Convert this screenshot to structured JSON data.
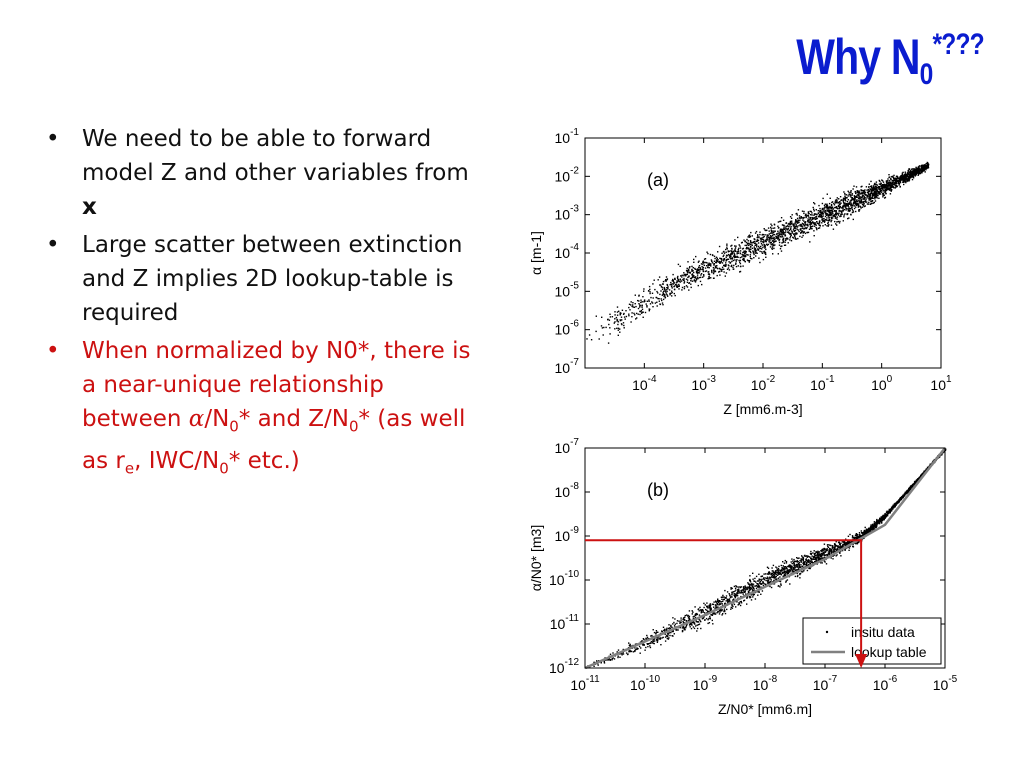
{
  "title": {
    "main": "Why N",
    "sub": "0",
    "rest": "*???"
  },
  "bullets": [
    {
      "text": "We need to be able to forward model Z and other variables from ",
      "bold": "x"
    },
    {
      "text": "Large scatter between extinction and Z implies 2D lookup-table is required"
    },
    {
      "p1": "When normalized by N0*, there is a near-unique relationship between ",
      "alpha": "α",
      "p2": "/N",
      "s1": "0",
      "p3": "* and Z/N",
      "s2": "0",
      "p4": "* (as well as r",
      "s3": "e",
      "p5": ", IWC/N",
      "s4": "0",
      "p6": "* etc.)"
    }
  ],
  "colors": {
    "title": "#0a1ccf",
    "highlight": "#cc1111",
    "scatter": "#000000",
    "lookup": "#808080"
  },
  "chart_data": [
    {
      "type": "scatter",
      "panel_label": "(a)",
      "xlabel": "Z [mm6.m-3]",
      "ylabel": "α [m-1]",
      "x_scale": "log",
      "y_scale": "log",
      "xlim": [
        1e-05,
        10
      ],
      "ylim": [
        1e-07,
        0.1
      ],
      "x_tick_labels": [
        "10^-4",
        "10^-3",
        "10^-2",
        "10^-1",
        "10^0",
        "10^1"
      ],
      "y_tick_labels": [
        "10^-1",
        "10^-2",
        "10^-3",
        "10^-4",
        "10^-5",
        "10^-6",
        "10^-7"
      ],
      "series": [
        {
          "role": "insitu data",
          "points": [
            {
              "x": 1e-05,
              "y": 5e-07
            },
            {
              "x": 0.0001,
              "y": 6e-06
            },
            {
              "x": 0.001,
              "y": 4e-05
            },
            {
              "x": 0.01,
              "y": 0.0002
            },
            {
              "x": 0.1,
              "y": 0.001
            },
            {
              "x": 1,
              "y": 0.005
            },
            {
              "x": 6,
              "y": 0.02
            }
          ]
        }
      ]
    },
    {
      "type": "scatter",
      "panel_label": "(b)",
      "xlabel": "Z/N0* [mm6.m]",
      "ylabel": "α/N0* [m3]",
      "x_scale": "log",
      "y_scale": "log",
      "xlim": [
        1e-11,
        1e-05
      ],
      "ylim": [
        1e-12,
        1e-07
      ],
      "x_tick_labels": [
        "10^-11",
        "10^-10",
        "10^-9",
        "10^-8",
        "10^-7",
        "10^-6",
        "10^-5"
      ],
      "y_tick_labels": [
        "10^-7",
        "10^-8",
        "10^-9",
        "10^-10",
        "10^-11",
        "10^-12"
      ],
      "legend": {
        "position": "bottom-right",
        "entries": [
          "insitu data",
          "lookup table"
        ]
      },
      "series": [
        {
          "name": "insitu data",
          "points": [
            {
              "x": 1e-11,
              "y": 1e-12
            },
            {
              "x": 1e-10,
              "y": 4e-12
            },
            {
              "x": 1e-09,
              "y": 1.8e-11
            },
            {
              "x": 1e-08,
              "y": 1e-10
            },
            {
              "x": 1e-07,
              "y": 4e-10
            },
            {
              "x": 4e-07,
              "y": 1e-09
            },
            {
              "x": 1e-06,
              "y": 3e-09
            },
            {
              "x": 1e-05,
              "y": 1e-07
            }
          ]
        },
        {
          "name": "lookup table",
          "points": [
            {
              "x": 1e-11,
              "y": 1e-12
            },
            {
              "x": 1e-10,
              "y": 4e-12
            },
            {
              "x": 1e-09,
              "y": 1.6e-11
            },
            {
              "x": 1e-08,
              "y": 7e-11
            },
            {
              "x": 1e-07,
              "y": 3e-10
            },
            {
              "x": 1e-06,
              "y": 1.8e-09
            },
            {
              "x": 1e-05,
              "y": 1e-07
            }
          ]
        }
      ],
      "highlight_lookup": {
        "y": 8e-10,
        "x": 4e-07
      }
    }
  ]
}
